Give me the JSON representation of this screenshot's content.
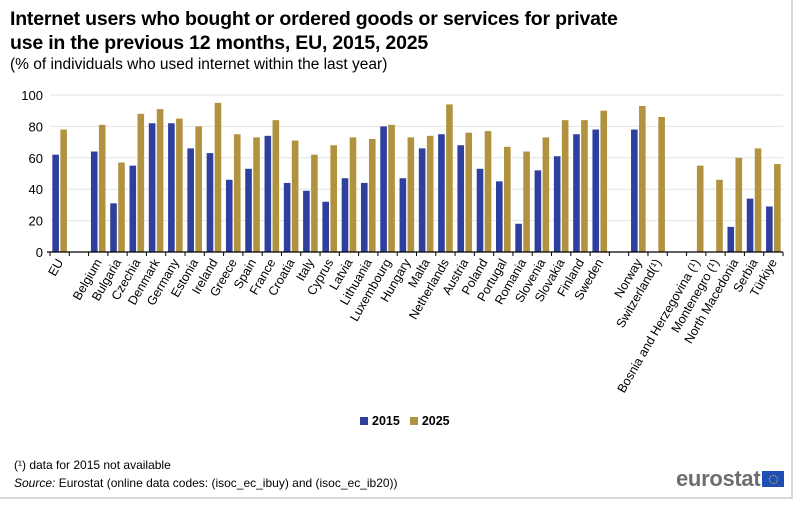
{
  "chart_data": {
    "type": "bar",
    "title": "Internet users who bought or ordered goods or services for private use in the previous 12 months, EU, 2015, 2025",
    "title_lines": [
      "Internet users who bought or ordered goods or services for private",
      "use in the previous 12 months, EU, 2015, 2025"
    ],
    "subtitle": "(% of individuals who used internet within the last year)",
    "xlabel": "",
    "ylabel": "",
    "ylim": [
      0,
      100
    ],
    "yticks": [
      0,
      20,
      40,
      60,
      80,
      100
    ],
    "grid": true,
    "legend_position": "bottom-center",
    "categories": [
      "EU",
      "",
      "Belgium",
      "Bulgaria",
      "Czechia",
      "Denmark",
      "Germany",
      "Estonia",
      "Ireland",
      "Greece",
      "Spain",
      "France",
      "Croatia",
      "Italy",
      "Cyprus",
      "Latvia",
      "Lithuania",
      "Luxembourg",
      "Hungary",
      "Malta",
      "Netherlands",
      "Austria",
      "Poland",
      "Portugal",
      "Romania",
      "Slovenia",
      "Slovakia",
      "Finland",
      "Sweden",
      "",
      "Norway",
      "Switzerland(¹)",
      "",
      "Bosnia and Herzegovina (¹)",
      "Montenegro (¹)",
      "North Macedonia",
      "Serbia",
      "Türkiye"
    ],
    "series": [
      {
        "name": "2015",
        "color": "#2e3f9e",
        "values": [
          62,
          null,
          64,
          31,
          55,
          82,
          82,
          66,
          63,
          46,
          53,
          74,
          44,
          39,
          32,
          47,
          44,
          80,
          47,
          66,
          75,
          68,
          53,
          45,
          18,
          52,
          61,
          75,
          78,
          null,
          78,
          null,
          null,
          null,
          null,
          16,
          34,
          29
        ]
      },
      {
        "name": "2025",
        "color": "#b1923e",
        "values": [
          78,
          null,
          81,
          57,
          88,
          91,
          85,
          80,
          95,
          75,
          73,
          84,
          71,
          62,
          68,
          73,
          72,
          81,
          73,
          74,
          94,
          76,
          77,
          67,
          64,
          73,
          84,
          84,
          90,
          null,
          93,
          86,
          null,
          55,
          46,
          60,
          66,
          56
        ]
      }
    ]
  },
  "legend": {
    "items": [
      {
        "label": "2015",
        "color": "#2e3f9e"
      },
      {
        "label": "2025",
        "color": "#b1923e"
      }
    ]
  },
  "footnote": "(¹) data for 2015 not available",
  "source": {
    "label": "Source:",
    "text": " Eurostat (online data codes: (isoc_ec_ibuy) and (isoc_ec_ib20))"
  },
  "logo": {
    "text": "eurostat"
  }
}
